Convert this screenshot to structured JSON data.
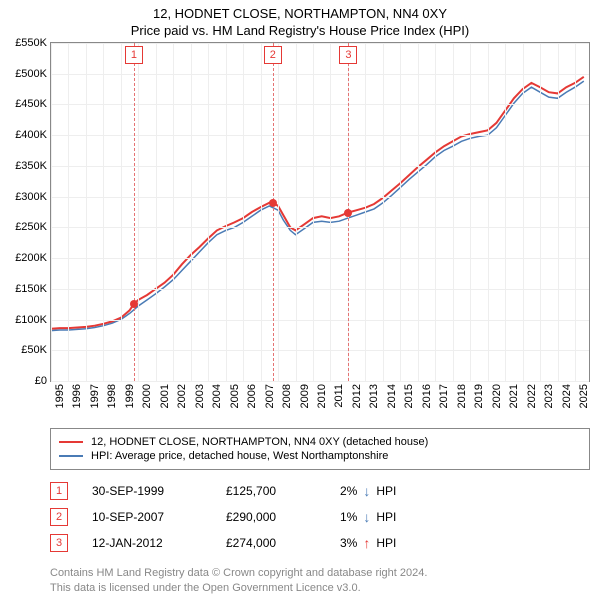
{
  "title": "12, HODNET CLOSE, NORTHAMPTON, NN4 0XY",
  "subtitle": "Price paid vs. HM Land Registry's House Price Index (HPI)",
  "chart": {
    "type": "line",
    "xlim": [
      1995,
      2025.8
    ],
    "ylim": [
      0,
      550
    ],
    "y_axis_label_prefix": "£",
    "y_axis_label_suffix": "K",
    "y_ticks": [
      0,
      50,
      100,
      150,
      200,
      250,
      300,
      350,
      400,
      450,
      500,
      550
    ],
    "x_ticks": [
      1995,
      1996,
      1997,
      1998,
      1999,
      2000,
      2001,
      2002,
      2003,
      2004,
      2005,
      2006,
      2007,
      2008,
      2009,
      2010,
      2011,
      2012,
      2013,
      2014,
      2015,
      2016,
      2017,
      2018,
      2019,
      2020,
      2021,
      2022,
      2023,
      2024,
      2025
    ],
    "grid_color": "#eeeeee",
    "border_color": "#888888",
    "background_color": "#ffffff",
    "marker_line_color": "#e57373",
    "marker_border_color": "#e53935",
    "dot_color": "#e53935",
    "series": [
      {
        "name": "price_paid",
        "label": "12, HODNET CLOSE, NORTHAMPTON, NN4 0XY (detached house)",
        "color": "#e53935",
        "width": 2,
        "points": [
          [
            1995.0,
            85
          ],
          [
            1995.5,
            86
          ],
          [
            1996.0,
            86
          ],
          [
            1996.5,
            87
          ],
          [
            1997.0,
            88
          ],
          [
            1997.5,
            90
          ],
          [
            1998.0,
            93
          ],
          [
            1998.5,
            97
          ],
          [
            1999.0,
            103
          ],
          [
            1999.5,
            115
          ],
          [
            1999.75,
            125.7
          ],
          [
            2000.0,
            132
          ],
          [
            2000.5,
            140
          ],
          [
            2001.0,
            150
          ],
          [
            2001.5,
            160
          ],
          [
            2002.0,
            173
          ],
          [
            2002.5,
            190
          ],
          [
            2003.0,
            205
          ],
          [
            2003.5,
            218
          ],
          [
            2004.0,
            232
          ],
          [
            2004.5,
            245
          ],
          [
            2005.0,
            252
          ],
          [
            2005.5,
            258
          ],
          [
            2006.0,
            265
          ],
          [
            2006.5,
            275
          ],
          [
            2007.0,
            283
          ],
          [
            2007.5,
            290
          ],
          [
            2007.7,
            290
          ],
          [
            2008.0,
            285
          ],
          [
            2008.3,
            270
          ],
          [
            2008.7,
            250
          ],
          [
            2009.0,
            245
          ],
          [
            2009.5,
            255
          ],
          [
            2010.0,
            265
          ],
          [
            2010.5,
            268
          ],
          [
            2011.0,
            265
          ],
          [
            2011.5,
            268
          ],
          [
            2012.0,
            274
          ],
          [
            2012.5,
            278
          ],
          [
            2013.0,
            282
          ],
          [
            2013.5,
            288
          ],
          [
            2014.0,
            298
          ],
          [
            2014.5,
            310
          ],
          [
            2015.0,
            322
          ],
          [
            2015.5,
            335
          ],
          [
            2016.0,
            348
          ],
          [
            2016.5,
            360
          ],
          [
            2017.0,
            372
          ],
          [
            2017.5,
            382
          ],
          [
            2018.0,
            390
          ],
          [
            2018.5,
            398
          ],
          [
            2019.0,
            402
          ],
          [
            2019.5,
            405
          ],
          [
            2020.0,
            408
          ],
          [
            2020.5,
            420
          ],
          [
            2021.0,
            440
          ],
          [
            2021.5,
            460
          ],
          [
            2022.0,
            475
          ],
          [
            2022.5,
            485
          ],
          [
            2023.0,
            478
          ],
          [
            2023.5,
            470
          ],
          [
            2024.0,
            468
          ],
          [
            2024.5,
            478
          ],
          [
            2025.0,
            485
          ],
          [
            2025.5,
            495
          ]
        ]
      },
      {
        "name": "hpi",
        "label": "HPI: Average price, detached house, West Northamptonshire",
        "color": "#4a7bb5",
        "width": 1.5,
        "points": [
          [
            1995.0,
            82
          ],
          [
            1995.5,
            83
          ],
          [
            1996.0,
            83
          ],
          [
            1996.5,
            84
          ],
          [
            1997.0,
            85
          ],
          [
            1997.5,
            87
          ],
          [
            1998.0,
            90
          ],
          [
            1998.5,
            94
          ],
          [
            1999.0,
            100
          ],
          [
            1999.5,
            110
          ],
          [
            2000.0,
            122
          ],
          [
            2000.5,
            132
          ],
          [
            2001.0,
            142
          ],
          [
            2001.5,
            153
          ],
          [
            2002.0,
            165
          ],
          [
            2002.5,
            180
          ],
          [
            2003.0,
            195
          ],
          [
            2003.5,
            210
          ],
          [
            2004.0,
            225
          ],
          [
            2004.5,
            238
          ],
          [
            2005.0,
            245
          ],
          [
            2005.5,
            250
          ],
          [
            2006.0,
            258
          ],
          [
            2006.5,
            268
          ],
          [
            2007.0,
            278
          ],
          [
            2007.5,
            285
          ],
          [
            2008.0,
            278
          ],
          [
            2008.3,
            262
          ],
          [
            2008.7,
            245
          ],
          [
            2009.0,
            238
          ],
          [
            2009.5,
            248
          ],
          [
            2010.0,
            258
          ],
          [
            2010.5,
            260
          ],
          [
            2011.0,
            258
          ],
          [
            2011.5,
            260
          ],
          [
            2012.0,
            265
          ],
          [
            2012.5,
            270
          ],
          [
            2013.0,
            275
          ],
          [
            2013.5,
            280
          ],
          [
            2014.0,
            290
          ],
          [
            2014.5,
            302
          ],
          [
            2015.0,
            315
          ],
          [
            2015.5,
            328
          ],
          [
            2016.0,
            340
          ],
          [
            2016.5,
            352
          ],
          [
            2017.0,
            365
          ],
          [
            2017.5,
            375
          ],
          [
            2018.0,
            382
          ],
          [
            2018.5,
            390
          ],
          [
            2019.0,
            395
          ],
          [
            2019.5,
            398
          ],
          [
            2020.0,
            400
          ],
          [
            2020.5,
            412
          ],
          [
            2021.0,
            432
          ],
          [
            2021.5,
            452
          ],
          [
            2022.0,
            468
          ],
          [
            2022.5,
            478
          ],
          [
            2023.0,
            470
          ],
          [
            2023.5,
            462
          ],
          [
            2024.0,
            460
          ],
          [
            2024.5,
            470
          ],
          [
            2025.0,
            478
          ],
          [
            2025.5,
            488
          ]
        ]
      }
    ],
    "markers": [
      {
        "n": "1",
        "x": 1999.75,
        "y_marker": 530,
        "dot_y": 125.7
      },
      {
        "n": "2",
        "x": 2007.7,
        "y_marker": 530,
        "dot_y": 290
      },
      {
        "n": "3",
        "x": 2012.03,
        "y_marker": 530,
        "dot_y": 274
      }
    ]
  },
  "legend": {
    "items": [
      {
        "color": "#e53935",
        "label": "12, HODNET CLOSE, NORTHAMPTON, NN4 0XY (detached house)"
      },
      {
        "color": "#4a7bb5",
        "label": "HPI: Average price, detached house, West Northamptonshire"
      }
    ]
  },
  "transactions": [
    {
      "n": "1",
      "date": "30-SEP-1999",
      "price": "£125,700",
      "diff_pct": "2%",
      "diff_dir": "down",
      "diff_label": "HPI"
    },
    {
      "n": "2",
      "date": "10-SEP-2007",
      "price": "£290,000",
      "diff_pct": "1%",
      "diff_dir": "down",
      "diff_label": "HPI"
    },
    {
      "n": "3",
      "date": "12-JAN-2012",
      "price": "£274,000",
      "diff_pct": "3%",
      "diff_dir": "up",
      "diff_label": "HPI"
    }
  ],
  "arrows": {
    "up_color": "#e53935",
    "down_color": "#4a7bb5",
    "up_glyph": "↑",
    "down_glyph": "↓"
  },
  "footer": {
    "line1": "Contains HM Land Registry data © Crown copyright and database right 2024.",
    "line2": "This data is licensed under the Open Government Licence v3.0."
  }
}
